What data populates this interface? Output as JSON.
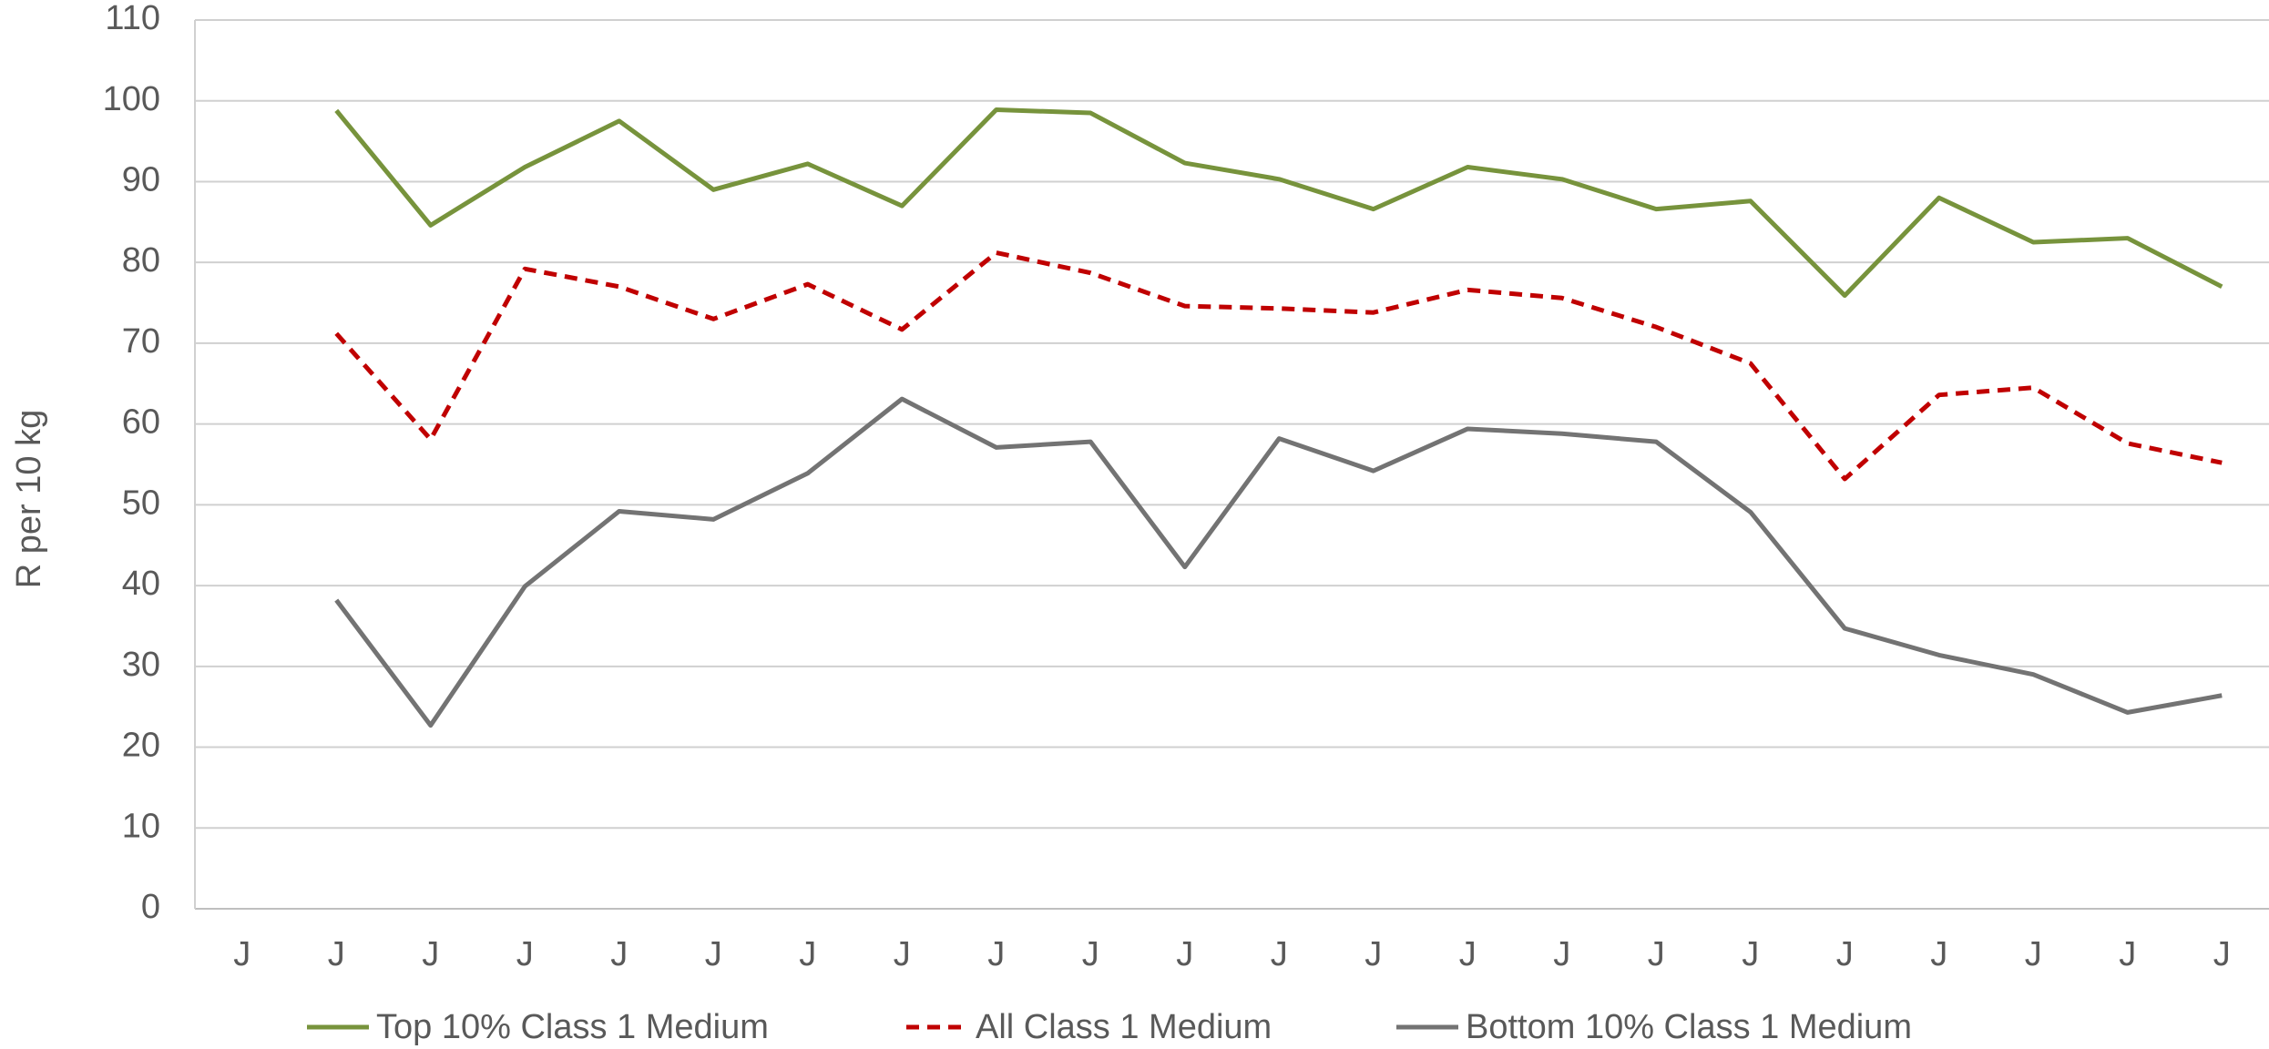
{
  "chart_data": {
    "type": "line",
    "y_label": "R per 10 kg",
    "categories": [
      "J",
      "J",
      "J",
      "J",
      "J",
      "J",
      "J",
      "J",
      "J",
      "J",
      "J",
      "J",
      "J",
      "J",
      "J",
      "J",
      "J",
      "J",
      "J",
      "J",
      "J",
      "J"
    ],
    "series": [
      {
        "name": "Top 10% Class 1 Medium",
        "color": "#77933c",
        "dashed": false,
        "values": [
          null,
          98.8,
          84.6,
          91.8,
          97.5,
          89,
          92.2,
          87,
          98.9,
          98.5,
          92.3,
          90.3,
          86.6,
          91.8,
          90.3,
          86.6,
          87.6,
          75.9,
          88,
          82.5,
          83,
          77
        ]
      },
      {
        "name": "All Class 1 Medium",
        "color": "#c00000",
        "dashed": true,
        "values": [
          null,
          71.2,
          58.1,
          79.2,
          77,
          73,
          77.3,
          71.7,
          81.2,
          78.7,
          74.6,
          74.3,
          73.8,
          76.6,
          75.6,
          72,
          67.5,
          53.2,
          63.6,
          64.5,
          57.6,
          55.2
        ]
      },
      {
        "name": "Bottom 10% Class 1 Medium",
        "color": "#737373",
        "dashed": false,
        "values": [
          null,
          38.2,
          22.7,
          39.9,
          49.2,
          48.2,
          53.9,
          63.1,
          57.1,
          57.8,
          42.3,
          58.2,
          54.2,
          59.4,
          58.8,
          57.8,
          49.1,
          34.7,
          31.4,
          29,
          24.3,
          26.4
        ]
      }
    ],
    "ylim": [
      0,
      110
    ],
    "yticks": [
      0,
      10,
      20,
      30,
      40,
      50,
      60,
      70,
      80,
      90,
      100,
      110
    ],
    "grid": true,
    "legend": "bottom"
  }
}
